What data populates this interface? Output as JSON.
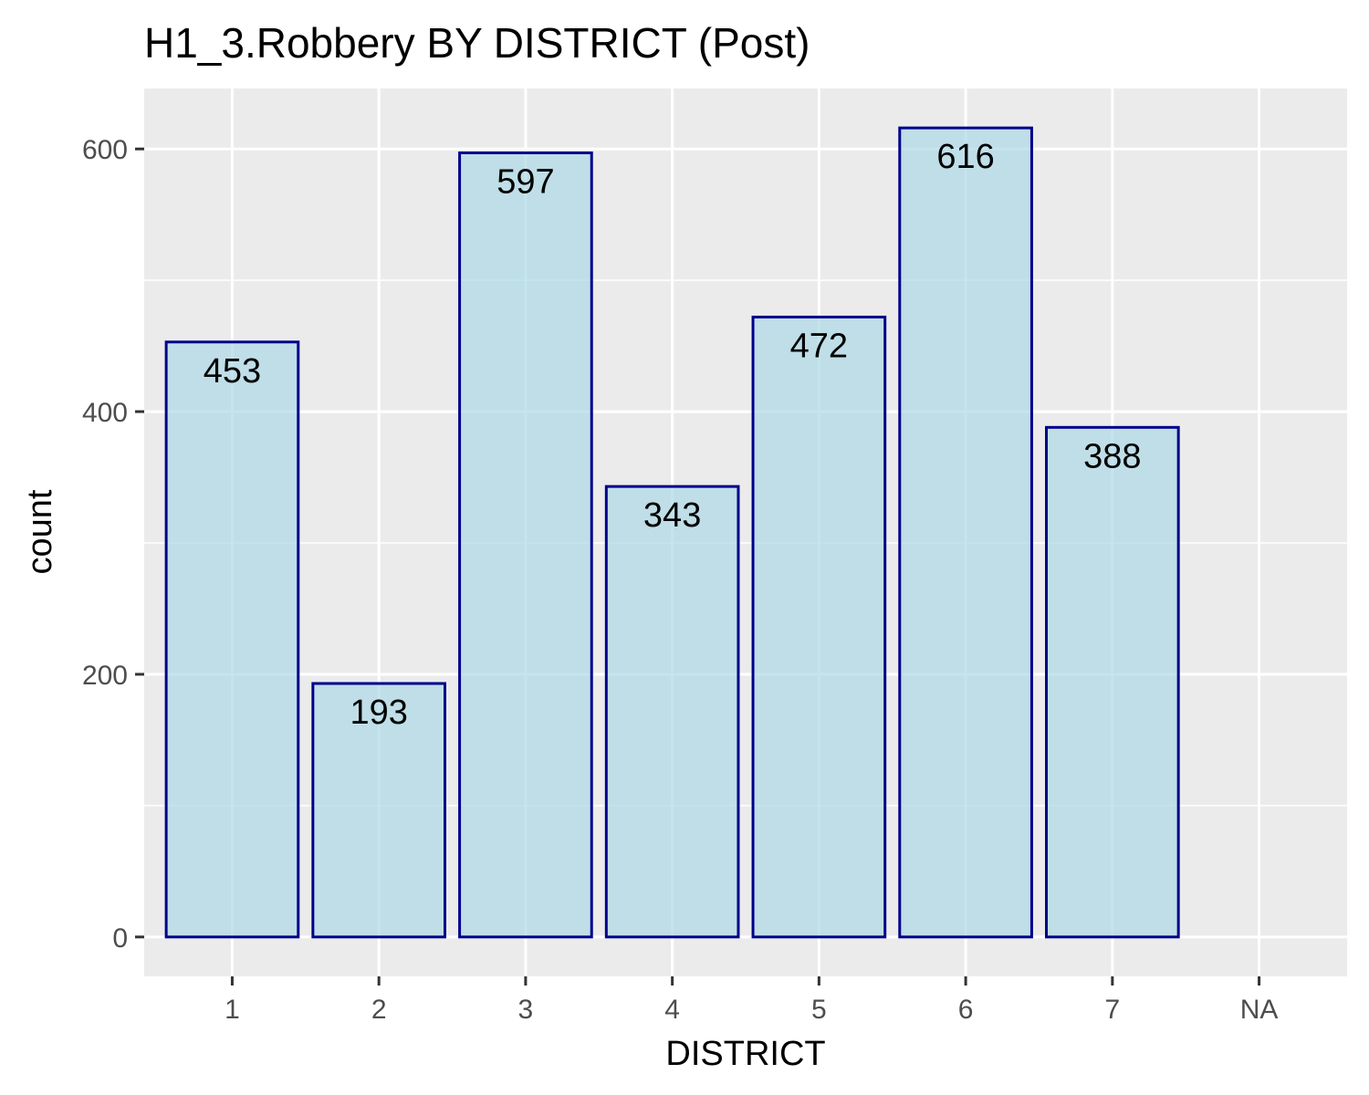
{
  "chart_data": {
    "type": "bar",
    "title": "H1_3.Robbery BY DISTRICT (Post)",
    "xlabel": "DISTRICT",
    "ylabel": "count",
    "categories": [
      "1",
      "2",
      "3",
      "4",
      "5",
      "6",
      "7",
      "NA"
    ],
    "values": [
      453,
      193,
      597,
      343,
      472,
      616,
      388,
      null
    ],
    "data_labels": [
      "453",
      "193",
      "597",
      "343",
      "472",
      "616",
      "388",
      ""
    ],
    "ylim": [
      -30,
      646
    ],
    "y_ticks": [
      0,
      200,
      400,
      600
    ],
    "y_minor_ticks": [
      100,
      300,
      500
    ],
    "grid": true,
    "legend": "none",
    "colors": {
      "panel_background": "#ebebeb",
      "grid_line": "#ffffff",
      "bar_fill": "#add8e6",
      "bar_fill_opacity": 0.7,
      "bar_outline": "#00008b",
      "tick_text": "#4d4d4d",
      "tick_mark": "#333333"
    }
  }
}
